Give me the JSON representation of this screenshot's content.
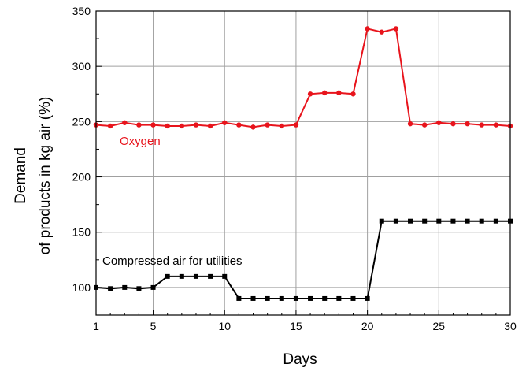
{
  "chart_data": {
    "type": "line",
    "title": "",
    "xlabel": "Days",
    "ylabel_lines": [
      "Demand",
      "of products in kg air  (%)"
    ],
    "xlim": [
      1,
      30
    ],
    "ylim": [
      75,
      350
    ],
    "x_ticks": [
      1,
      5,
      10,
      15,
      20,
      25,
      30
    ],
    "y_ticks": [
      100,
      150,
      200,
      250,
      300,
      350
    ],
    "grid": true,
    "x": [
      1,
      2,
      3,
      4,
      5,
      6,
      7,
      8,
      9,
      10,
      11,
      12,
      13,
      14,
      15,
      16,
      17,
      18,
      19,
      20,
      21,
      22,
      23,
      24,
      25,
      26,
      27,
      28,
      29,
      30
    ],
    "series": [
      {
        "name": "Oxygen",
        "color": "#e8141c",
        "marker": "circle",
        "values": [
          247,
          246,
          249,
          247,
          247,
          246,
          246,
          247,
          246,
          249,
          247,
          245,
          247,
          246,
          247,
          275,
          276,
          276,
          275,
          334,
          331,
          334,
          248,
          247,
          249,
          248,
          248,
          247,
          247,
          246
        ]
      },
      {
        "name": "Compressed air for utilities",
        "color": "#000000",
        "marker": "square",
        "values": [
          100,
          99,
          100,
          99,
          100,
          110,
          110,
          110,
          110,
          110,
          90,
          90,
          90,
          90,
          90,
          90,
          90,
          90,
          90,
          90,
          160,
          160,
          160,
          160,
          160,
          160,
          160,
          160,
          160,
          160
        ]
      }
    ]
  }
}
